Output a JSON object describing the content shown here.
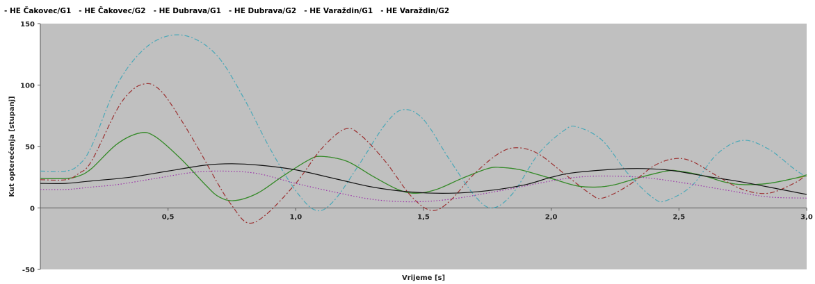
{
  "chart_data": {
    "type": "line",
    "xlabel": "Vrijeme [s]",
    "ylabel": "Kut opterećenja [stupanj]",
    "xlim": [
      0,
      3.0
    ],
    "ylim": [
      -50,
      150
    ],
    "x_ticks": [
      0.5,
      1.0,
      1.5,
      2.0,
      2.5,
      3.0
    ],
    "x_tick_labels": [
      "0,5",
      "1,0",
      "1,5",
      "2,0",
      "2,5",
      "3,0"
    ],
    "y_ticks": [
      -50,
      0,
      50,
      100,
      150
    ],
    "y_tick_labels": [
      "-50",
      "0",
      "50",
      "100",
      "150"
    ],
    "grid": false,
    "legend_position": "top-left",
    "plot_background": "#c0c0c0",
    "series": [
      {
        "name": "HE Čakovec/G1",
        "color": "#8b8b1a",
        "style": "solid",
        "points": [
          [
            0,
            24
          ],
          [
            0.1,
            24
          ],
          [
            0.15,
            26
          ],
          [
            0.2,
            32
          ],
          [
            0.3,
            52
          ],
          [
            0.39,
            61
          ],
          [
            0.45,
            58
          ],
          [
            0.55,
            40
          ],
          [
            0.65,
            18
          ],
          [
            0.7,
            9
          ],
          [
            0.76,
            6
          ],
          [
            0.85,
            12
          ],
          [
            0.95,
            26
          ],
          [
            1.05,
            39
          ],
          [
            1.1,
            42
          ],
          [
            1.2,
            38
          ],
          [
            1.3,
            26
          ],
          [
            1.4,
            15
          ],
          [
            1.47,
            12
          ],
          [
            1.55,
            15
          ],
          [
            1.65,
            24
          ],
          [
            1.75,
            32
          ],
          [
            1.8,
            33
          ],
          [
            1.88,
            31
          ],
          [
            2.0,
            24
          ],
          [
            2.1,
            18
          ],
          [
            2.18,
            17
          ],
          [
            2.25,
            19
          ],
          [
            2.35,
            25
          ],
          [
            2.45,
            30
          ],
          [
            2.5,
            30
          ],
          [
            2.6,
            26
          ],
          [
            2.68,
            21
          ],
          [
            2.75,
            19
          ],
          [
            2.85,
            20
          ],
          [
            2.95,
            24
          ],
          [
            3.0,
            26
          ]
        ]
      },
      {
        "name": "HE Čakovec/G2",
        "color": "#2e8b2e",
        "style": "solid",
        "points": [
          [
            0,
            24
          ],
          [
            0.1,
            24
          ],
          [
            0.15,
            26
          ],
          [
            0.2,
            32
          ],
          [
            0.3,
            52
          ],
          [
            0.39,
            61
          ],
          [
            0.45,
            58
          ],
          [
            0.55,
            40
          ],
          [
            0.65,
            18
          ],
          [
            0.7,
            9
          ],
          [
            0.76,
            6
          ],
          [
            0.85,
            12
          ],
          [
            0.95,
            26
          ],
          [
            1.05,
            39
          ],
          [
            1.1,
            42
          ],
          [
            1.2,
            38
          ],
          [
            1.3,
            26
          ],
          [
            1.4,
            15
          ],
          [
            1.47,
            12
          ],
          [
            1.55,
            15
          ],
          [
            1.65,
            24
          ],
          [
            1.75,
            32
          ],
          [
            1.8,
            33
          ],
          [
            1.88,
            31
          ],
          [
            2.0,
            24
          ],
          [
            2.1,
            18
          ],
          [
            2.18,
            17
          ],
          [
            2.25,
            19
          ],
          [
            2.35,
            25
          ],
          [
            2.45,
            30
          ],
          [
            2.5,
            30
          ],
          [
            2.6,
            26
          ],
          [
            2.68,
            21
          ],
          [
            2.75,
            19
          ],
          [
            2.85,
            20
          ],
          [
            2.95,
            24
          ],
          [
            3.0,
            27
          ]
        ]
      },
      {
        "name": "HE Dubrava/G1",
        "color": "#9b3030",
        "style": "dashdot",
        "points": [
          [
            0,
            23
          ],
          [
            0.1,
            23
          ],
          [
            0.15,
            28
          ],
          [
            0.2,
            38
          ],
          [
            0.3,
            80
          ],
          [
            0.36,
            96
          ],
          [
            0.41,
            101
          ],
          [
            0.45,
            99
          ],
          [
            0.5,
            88
          ],
          [
            0.6,
            55
          ],
          [
            0.7,
            18
          ],
          [
            0.75,
            2
          ],
          [
            0.81,
            -12
          ],
          [
            0.88,
            -6
          ],
          [
            1.0,
            20
          ],
          [
            1.1,
            48
          ],
          [
            1.19,
            64
          ],
          [
            1.25,
            60
          ],
          [
            1.35,
            38
          ],
          [
            1.45,
            10
          ],
          [
            1.53,
            -2
          ],
          [
            1.6,
            5
          ],
          [
            1.7,
            28
          ],
          [
            1.8,
            45
          ],
          [
            1.87,
            49
          ],
          [
            1.95,
            44
          ],
          [
            2.05,
            28
          ],
          [
            2.15,
            12
          ],
          [
            2.2,
            8
          ],
          [
            2.3,
            18
          ],
          [
            2.4,
            34
          ],
          [
            2.48,
            40
          ],
          [
            2.55,
            38
          ],
          [
            2.65,
            26
          ],
          [
            2.75,
            15
          ],
          [
            2.85,
            12
          ],
          [
            2.95,
            20
          ],
          [
            3.0,
            27
          ]
        ]
      },
      {
        "name": "HE Dubrava/G2",
        "color": "#4aa8b8",
        "style": "dashdot",
        "points": [
          [
            0,
            30
          ],
          [
            0.1,
            30
          ],
          [
            0.15,
            35
          ],
          [
            0.2,
            50
          ],
          [
            0.3,
            100
          ],
          [
            0.4,
            128
          ],
          [
            0.5,
            140
          ],
          [
            0.6,
            138
          ],
          [
            0.7,
            122
          ],
          [
            0.8,
            88
          ],
          [
            0.9,
            48
          ],
          [
            1.0,
            14
          ],
          [
            1.08,
            -2
          ],
          [
            1.15,
            6
          ],
          [
            1.25,
            36
          ],
          [
            1.35,
            68
          ],
          [
            1.42,
            80
          ],
          [
            1.5,
            72
          ],
          [
            1.6,
            40
          ],
          [
            1.7,
            10
          ],
          [
            1.77,
            0
          ],
          [
            1.85,
            12
          ],
          [
            1.95,
            44
          ],
          [
            2.05,
            63
          ],
          [
            2.1,
            66
          ],
          [
            2.2,
            55
          ],
          [
            2.3,
            28
          ],
          [
            2.4,
            8
          ],
          [
            2.45,
            6
          ],
          [
            2.55,
            18
          ],
          [
            2.65,
            44
          ],
          [
            2.75,
            55
          ],
          [
            2.85,
            48
          ],
          [
            2.95,
            32
          ],
          [
            3.0,
            25
          ]
        ]
      },
      {
        "name": "HE Varaždin/G1",
        "color": "#9a30a8",
        "style": "dotted",
        "points": [
          [
            0,
            15
          ],
          [
            0.1,
            15
          ],
          [
            0.2,
            17
          ],
          [
            0.3,
            19
          ],
          [
            0.45,
            24
          ],
          [
            0.6,
            29
          ],
          [
            0.72,
            30
          ],
          [
            0.85,
            28
          ],
          [
            1.0,
            20
          ],
          [
            1.15,
            13
          ],
          [
            1.3,
            7
          ],
          [
            1.45,
            5
          ],
          [
            1.6,
            7
          ],
          [
            1.8,
            14
          ],
          [
            2.0,
            22
          ],
          [
            2.1,
            25
          ],
          [
            2.2,
            26
          ],
          [
            2.35,
            25
          ],
          [
            2.5,
            21
          ],
          [
            2.7,
            14
          ],
          [
            2.85,
            9
          ],
          [
            3.0,
            8
          ]
        ]
      },
      {
        "name": "HE Varaždin/G2",
        "color": "#111111",
        "style": "solid",
        "points": [
          [
            0,
            20
          ],
          [
            0.1,
            20
          ],
          [
            0.2,
            22
          ],
          [
            0.35,
            25
          ],
          [
            0.5,
            30
          ],
          [
            0.65,
            35
          ],
          [
            0.75,
            36
          ],
          [
            0.85,
            35
          ],
          [
            1.0,
            31
          ],
          [
            1.15,
            24
          ],
          [
            1.3,
            17
          ],
          [
            1.45,
            13
          ],
          [
            1.6,
            12
          ],
          [
            1.75,
            14
          ],
          [
            1.9,
            19
          ],
          [
            2.0,
            25
          ],
          [
            2.1,
            29
          ],
          [
            2.3,
            32
          ],
          [
            2.45,
            31
          ],
          [
            2.6,
            26
          ],
          [
            2.75,
            21
          ],
          [
            2.9,
            15
          ],
          [
            3.0,
            11
          ]
        ]
      }
    ]
  }
}
